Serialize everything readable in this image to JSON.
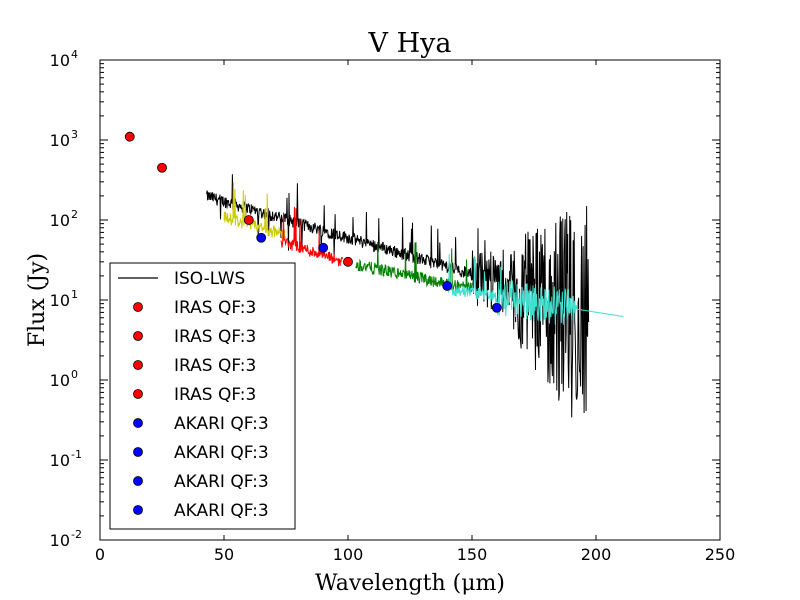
{
  "chart_data": {
    "type": "scatter",
    "title": "V Hya",
    "xlabel": "Wavelength (μm)",
    "ylabel": "Flux (Jy)",
    "xlim": [
      0,
      250
    ],
    "ylim": [
      0.01,
      10000
    ],
    "yscale": "log",
    "x_ticks": [
      0,
      50,
      100,
      150,
      200,
      250
    ],
    "x_tick_labels": [
      "0",
      "50",
      "100",
      "150",
      "200",
      "250"
    ],
    "y_ticks": [
      0.01,
      0.1,
      1,
      10,
      100,
      1000,
      10000
    ],
    "y_tick_labels": [
      {
        "base": "10",
        "exp": "-2"
      },
      {
        "base": "10",
        "exp": "-1"
      },
      {
        "base": "10",
        "exp": "0"
      },
      {
        "base": "10",
        "exp": "1"
      },
      {
        "base": "10",
        "exp": "2"
      },
      {
        "base": "10",
        "exp": "3"
      },
      {
        "base": "10",
        "exp": "4"
      }
    ],
    "grid": false,
    "legend_position": "lower-left",
    "legend": [
      {
        "label": "ISO-LWS",
        "kind": "line",
        "color": "#000000"
      },
      {
        "label": "IRAS QF:3",
        "kind": "marker",
        "color": "#ff0000"
      },
      {
        "label": "IRAS QF:3",
        "kind": "marker",
        "color": "#ff0000"
      },
      {
        "label": "IRAS QF:3",
        "kind": "marker",
        "color": "#ff0000"
      },
      {
        "label": "IRAS QF:3",
        "kind": "marker",
        "color": "#ff0000"
      },
      {
        "label": "AKARI QF:3",
        "kind": "marker",
        "color": "#0000ff"
      },
      {
        "label": "AKARI QF:3",
        "kind": "marker",
        "color": "#0000ff"
      },
      {
        "label": "AKARI QF:3",
        "kind": "marker",
        "color": "#0000ff"
      },
      {
        "label": "AKARI QF:3",
        "kind": "marker",
        "color": "#0000ff"
      }
    ],
    "series": [
      {
        "name": "IRAS QF:3",
        "kind": "scatter",
        "color": "#ff0000",
        "x": [
          12,
          25,
          60,
          100
        ],
        "y": [
          1100,
          450,
          100,
          30
        ]
      },
      {
        "name": "AKARI QF:3",
        "kind": "scatter",
        "color": "#0000ff",
        "x": [
          65,
          90,
          140,
          160
        ],
        "y": [
          60,
          45,
          15,
          8
        ]
      },
      {
        "name": "ISO-LWS",
        "kind": "line",
        "color": "#000000",
        "x_range": [
          43,
          197
        ],
        "y_start": 200,
        "y_end": 8
      },
      {
        "name": "detector band yellow",
        "kind": "line",
        "color": "#cccc00",
        "x_range": [
          50,
          75
        ],
        "y_start": 110,
        "y_end": 65
      },
      {
        "name": "detector band red",
        "kind": "line",
        "color": "#ff0000",
        "x_range": [
          73,
          98
        ],
        "y_start": 55,
        "y_end": 30
      },
      {
        "name": "detector band green",
        "kind": "line",
        "color": "#008000",
        "x_range": [
          103,
          150
        ],
        "y_start": 28,
        "y_end": 14
      },
      {
        "name": "detector band turquoise",
        "kind": "line",
        "color": "#40e0d0",
        "x_range": [
          140,
          211
        ],
        "y_start": 14,
        "y_end": 6.2
      }
    ]
  }
}
